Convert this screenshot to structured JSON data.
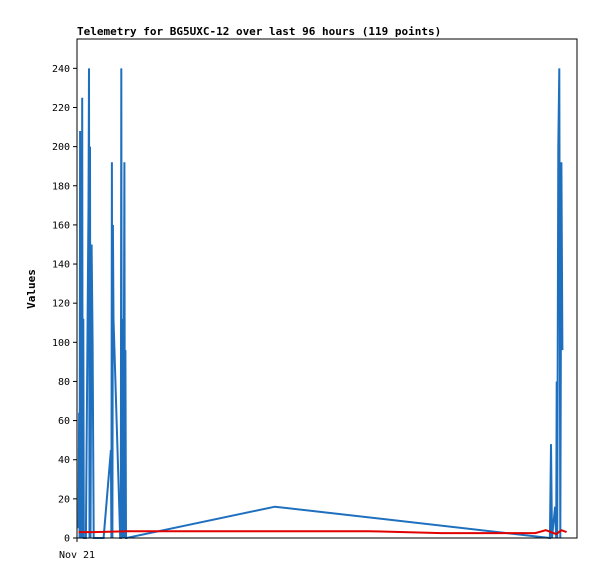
{
  "chart_data": {
    "type": "line",
    "title": "Telemetry for BG5UXC-12 over last 96 hours (119 points)",
    "ylabel": "Values",
    "xlabel": "",
    "ylim": [
      0,
      255
    ],
    "xlim": [
      0,
      96
    ],
    "y_ticks": [
      0,
      20,
      40,
      60,
      80,
      100,
      120,
      140,
      160,
      180,
      200,
      220,
      240
    ],
    "x_tick_labels": [
      "Nov 21"
    ],
    "grid": false,
    "legend": "none",
    "series": [
      {
        "color": "#1f6fbf",
        "x": [
          0.3,
          0.4,
          0.5,
          0.6,
          0.7,
          0.8,
          0.9,
          1.0,
          1.1,
          1.2,
          1.3,
          1.5,
          1.6,
          1.7,
          2.2,
          2.3,
          2.4,
          2.5,
          2.6,
          2.8,
          3.0,
          3.2,
          4.3,
          5.1,
          6.5,
          6.6,
          6.7,
          6.8,
          6.9,
          7.0,
          8.3,
          8.4,
          8.5,
          8.6,
          8.7,
          8.9,
          9.1,
          9.2,
          9.3,
          9.4,
          9.5,
          38.0,
          90.8,
          91.0,
          91.2,
          91.8,
          92.0,
          92.1,
          92.2,
          92.4,
          92.6,
          92.8,
          93.0,
          93.2
        ],
        "y": [
          5,
          64,
          0,
          208,
          0,
          104,
          0,
          225,
          0,
          112,
          0,
          0,
          0,
          0,
          170,
          240,
          0,
          200,
          0,
          150,
          100,
          0,
          0,
          0,
          45,
          0,
          192,
          0,
          160,
          112,
          0,
          0,
          240,
          0,
          112,
          0,
          192,
          0,
          96,
          0,
          0,
          16,
          0,
          48,
          0,
          16,
          0,
          80,
          0,
          200,
          240,
          0,
          192,
          96
        ]
      },
      {
        "color": "#e00000",
        "x": [
          0.3,
          1.5,
          3.0,
          10,
          30,
          56,
          70,
          88,
          90,
          91,
          92,
          93,
          94
        ],
        "y": [
          3,
          3,
          3,
          3.5,
          3.5,
          3.5,
          2.5,
          2.5,
          4,
          3,
          2,
          4,
          3
        ]
      },
      {
        "color": "#000000",
        "x": [
          0,
          96
        ],
        "y": [
          0,
          0
        ]
      }
    ]
  }
}
